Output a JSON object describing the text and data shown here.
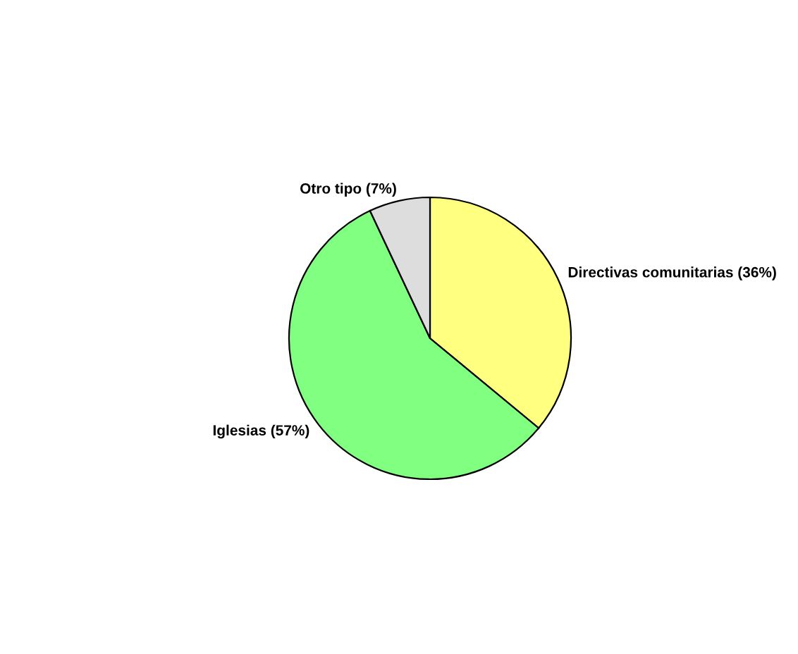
{
  "chart_data": {
    "type": "pie",
    "categories": [
      "Directivas comunitarias (36%)",
      "Iglesias (57%)",
      "Otro tipo (7%)"
    ],
    "values": [
      36,
      57,
      7
    ],
    "colors": [
      "#ffff80",
      "#80ff80",
      "#dddddd"
    ]
  }
}
